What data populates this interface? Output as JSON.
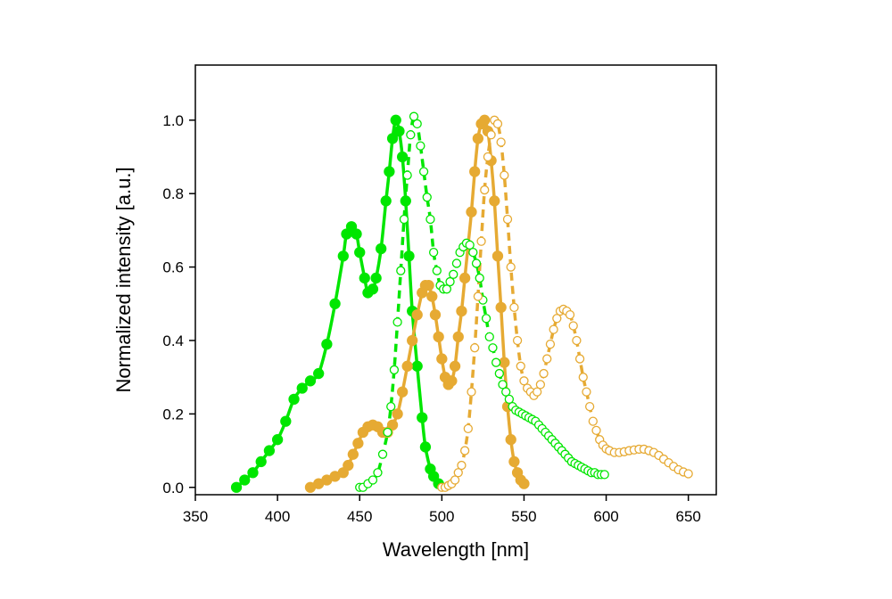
{
  "chart_data": {
    "type": "scatter",
    "title": "",
    "xlabel": "Wavelength [nm]",
    "ylabel": "Normalized intensity [a.u.]",
    "xlim": [
      350,
      667
    ],
    "ylim": [
      -0.02,
      1.15
    ],
    "xticks": [
      "350",
      "400",
      "450",
      "500",
      "550",
      "600",
      "650"
    ],
    "yticks": [
      "0.0",
      "0.2",
      "0.4",
      "0.6",
      "0.8",
      "1.0"
    ],
    "grid": false,
    "legend": "none",
    "series": [
      {
        "color": "#00e600",
        "marker": "filled",
        "line": "solid",
        "x": [
          375,
          380,
          385,
          390,
          395,
          400,
          405,
          410,
          415,
          420,
          425,
          430,
          435,
          440,
          442,
          445,
          448,
          450,
          453,
          455,
          458,
          460,
          463,
          466,
          468,
          470,
          472,
          474,
          476,
          478,
          480,
          482,
          485,
          488,
          490,
          493,
          495,
          498
        ],
        "y": [
          0.0,
          0.02,
          0.04,
          0.07,
          0.1,
          0.13,
          0.18,
          0.24,
          0.27,
          0.29,
          0.31,
          0.39,
          0.5,
          0.63,
          0.69,
          0.71,
          0.69,
          0.64,
          0.57,
          0.53,
          0.54,
          0.57,
          0.65,
          0.78,
          0.86,
          0.95,
          1.0,
          0.97,
          0.9,
          0.78,
          0.63,
          0.48,
          0.33,
          0.19,
          0.11,
          0.05,
          0.03,
          0.01
        ]
      },
      {
        "color": "#e6aa33",
        "marker": "filled",
        "line": "solid",
        "x": [
          420,
          425,
          430,
          435,
          440,
          443,
          446,
          449,
          452,
          455,
          458,
          461,
          464,
          467,
          470,
          473,
          476,
          479,
          482,
          485,
          488,
          490,
          492,
          494,
          496,
          498,
          500,
          502,
          504,
          506,
          508,
          510,
          512,
          514,
          516,
          518,
          520,
          522,
          524,
          526,
          528,
          530,
          532,
          534,
          536,
          538,
          540,
          542,
          544,
          546,
          548,
          550
        ],
        "y": [
          0.0,
          0.01,
          0.02,
          0.03,
          0.04,
          0.06,
          0.09,
          0.12,
          0.15,
          0.165,
          0.17,
          0.165,
          0.15,
          0.15,
          0.17,
          0.2,
          0.26,
          0.33,
          0.4,
          0.47,
          0.53,
          0.55,
          0.55,
          0.52,
          0.47,
          0.41,
          0.35,
          0.3,
          0.28,
          0.29,
          0.33,
          0.41,
          0.48,
          0.57,
          0.66,
          0.75,
          0.86,
          0.95,
          0.99,
          1.0,
          0.97,
          0.89,
          0.78,
          0.63,
          0.49,
          0.34,
          0.22,
          0.13,
          0.07,
          0.04,
          0.02,
          0.01
        ]
      },
      {
        "color": "#00e600",
        "marker": "open",
        "line": "dashed",
        "x": [
          450,
          452,
          455,
          458,
          461,
          464,
          467,
          469,
          471,
          473,
          475,
          477,
          479,
          481,
          483,
          485,
          487,
          489,
          491,
          493,
          495,
          497,
          499,
          501,
          503,
          505,
          507,
          509,
          511,
          513,
          515,
          517,
          519,
          521,
          523,
          525,
          527,
          529,
          531,
          533,
          535,
          537,
          539,
          541,
          543,
          545,
          547,
          549,
          551,
          553,
          555,
          557,
          559,
          561,
          563,
          565,
          567,
          569,
          571,
          573,
          575,
          577,
          579,
          581,
          583,
          585,
          587,
          589,
          591,
          593,
          595,
          597,
          599
        ],
        "y": [
          0.0,
          0.0,
          0.01,
          0.02,
          0.04,
          0.09,
          0.15,
          0.22,
          0.32,
          0.45,
          0.59,
          0.73,
          0.85,
          0.96,
          1.01,
          0.99,
          0.93,
          0.86,
          0.79,
          0.73,
          0.64,
          0.59,
          0.55,
          0.54,
          0.54,
          0.56,
          0.58,
          0.61,
          0.64,
          0.655,
          0.665,
          0.66,
          0.64,
          0.61,
          0.57,
          0.51,
          0.46,
          0.41,
          0.38,
          0.34,
          0.31,
          0.28,
          0.26,
          0.24,
          0.22,
          0.21,
          0.205,
          0.2,
          0.195,
          0.19,
          0.185,
          0.18,
          0.17,
          0.16,
          0.15,
          0.14,
          0.13,
          0.12,
          0.11,
          0.1,
          0.09,
          0.08,
          0.07,
          0.065,
          0.06,
          0.055,
          0.05,
          0.045,
          0.04,
          0.04,
          0.035,
          0.035,
          0.035
        ]
      },
      {
        "color": "#e6aa33",
        "marker": "open",
        "line": "dashed",
        "x": [
          500,
          502,
          504,
          506,
          508,
          510,
          512,
          514,
          516,
          518,
          520,
          522,
          524,
          526,
          528,
          530,
          532,
          534,
          536,
          538,
          540,
          542,
          544,
          546,
          548,
          550,
          552,
          554,
          556,
          558,
          560,
          562,
          564,
          566,
          568,
          570,
          572,
          574,
          576,
          578,
          580,
          582,
          584,
          586,
          588,
          590,
          592,
          594,
          596,
          598,
          600,
          602,
          605,
          608,
          611,
          614,
          617,
          620,
          623,
          626,
          629,
          632,
          635,
          638,
          641,
          644,
          647,
          650
        ],
        "y": [
          0.0,
          0.0,
          0.005,
          0.01,
          0.02,
          0.04,
          0.06,
          0.1,
          0.16,
          0.26,
          0.38,
          0.52,
          0.67,
          0.81,
          0.9,
          0.96,
          1.0,
          0.99,
          0.94,
          0.85,
          0.73,
          0.6,
          0.49,
          0.4,
          0.33,
          0.29,
          0.27,
          0.26,
          0.25,
          0.26,
          0.28,
          0.31,
          0.35,
          0.39,
          0.43,
          0.46,
          0.48,
          0.485,
          0.48,
          0.47,
          0.44,
          0.4,
          0.35,
          0.3,
          0.26,
          0.22,
          0.18,
          0.155,
          0.13,
          0.115,
          0.105,
          0.1,
          0.095,
          0.095,
          0.097,
          0.1,
          0.102,
          0.104,
          0.104,
          0.1,
          0.095,
          0.087,
          0.077,
          0.067,
          0.057,
          0.048,
          0.042,
          0.037
        ]
      }
    ]
  }
}
